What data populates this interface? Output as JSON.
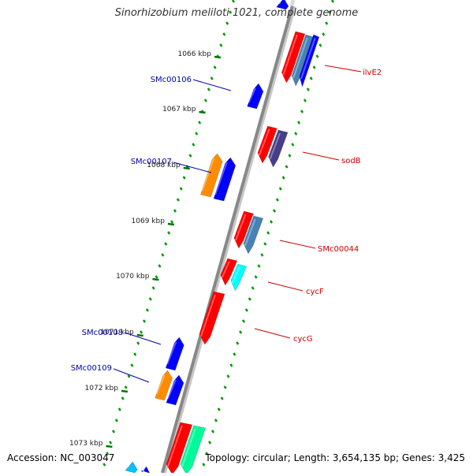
{
  "title": "Sinorhizobium meliloti 1021, complete genome",
  "accession": "Accession: NC_003047",
  "topology": "Topology: circular; Length: 3,654,135 bp; Genes: 3,425",
  "colors": {
    "backbone": "#888888",
    "tick_major": "#007700",
    "tick_minor": "#009900",
    "forward_label": "#cc0000",
    "reverse_label": "#0000aa"
  },
  "ticks": [
    "1066 kbp",
    "1067 kbp",
    "1068 kbp",
    "1069 kbp",
    "1070 kbp",
    "1071 kbp",
    "1072 kbp",
    "1073 kbp"
  ],
  "forward_labels": [
    {
      "name": "ilvE2",
      "color": "#cc0000"
    },
    {
      "name": "sodB",
      "color": "#cc0000"
    },
    {
      "name": "SMc00044",
      "color": "#cc0000"
    },
    {
      "name": "cycF",
      "color": "#cc0000"
    },
    {
      "name": "cycG",
      "color": "#cc0000"
    }
  ],
  "reverse_labels": [
    {
      "name": "SMc00106",
      "color": "#0000aa"
    },
    {
      "name": "SMc00107",
      "color": "#0000aa"
    },
    {
      "name": "SMc00108",
      "color": "#0000aa"
    },
    {
      "name": "SMc00109",
      "color": "#0000aa"
    }
  ],
  "forward_features": [
    {
      "color": "#ff0000",
      "icon": "arrow-down"
    },
    {
      "color": "#4682b4",
      "icon": "arrow-down"
    },
    {
      "color": "#0000ff",
      "icon": "arrow-down"
    },
    {
      "color": "#ff0000",
      "icon": "arrow-down"
    },
    {
      "color": "#483d8b",
      "icon": "arrow-down"
    },
    {
      "color": "#ff0000",
      "icon": "arrow-down"
    },
    {
      "color": "#4682b4",
      "icon": "arrow-down"
    },
    {
      "color": "#ff0000",
      "icon": "arrow-down"
    },
    {
      "color": "#00ffff",
      "icon": "arrow-down"
    },
    {
      "color": "#ff0000",
      "icon": "arrow-down"
    },
    {
      "color": "#ff0000",
      "icon": "arrow-down"
    },
    {
      "color": "#00fa9a",
      "icon": "arrow-down"
    }
  ],
  "reverse_features": [
    {
      "color": "#0000ff",
      "icon": "arrow-up"
    },
    {
      "color": "#ff8c00",
      "icon": "arrow-up"
    },
    {
      "color": "#0000ff",
      "icon": "arrow-up"
    },
    {
      "color": "#0000ff",
      "icon": "arrow-up"
    },
    {
      "color": "#ff8c00",
      "icon": "arrow-up"
    },
    {
      "color": "#0000ff",
      "icon": "arrow-up"
    },
    {
      "color": "#00bfff",
      "icon": "arrow-up"
    },
    {
      "color": "#0000ff",
      "icon": "arrow-up"
    }
  ]
}
